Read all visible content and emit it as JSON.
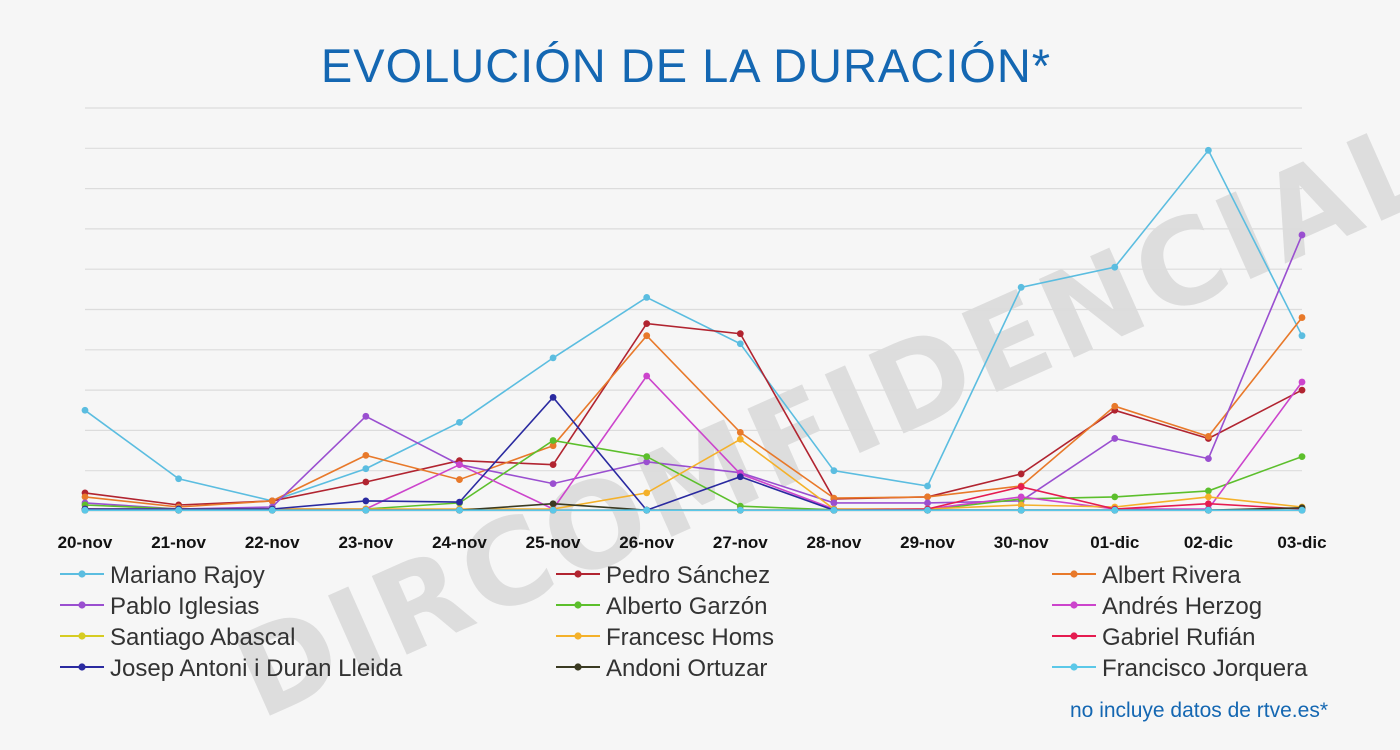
{
  "chart_data": {
    "type": "line",
    "title": "EVOLUCIÓN DE LA DURACIÓN*",
    "categories": [
      "20-nov",
      "21-nov",
      "22-nov",
      "23-nov",
      "24-nov",
      "25-nov",
      "26-nov",
      "27-nov",
      "28-nov",
      "29-nov",
      "30-nov",
      "01-dic",
      "02-dic",
      "03-dic"
    ],
    "ylim": [
      0,
      10
    ],
    "grid": true,
    "legend_position": "bottom",
    "series": [
      {
        "name": "Mariano Rajoy",
        "color": "#5bbde0",
        "values": [
          2.5,
          0.8,
          0.25,
          1.05,
          2.2,
          3.8,
          5.3,
          4.15,
          1.0,
          0.62,
          5.55,
          6.05,
          8.95,
          4.35
        ]
      },
      {
        "name": "Pedro Sánchez",
        "color": "#b12430",
        "values": [
          0.45,
          0.15,
          0.25,
          0.72,
          1.25,
          1.15,
          4.65,
          4.4,
          0.3,
          0.35,
          0.92,
          2.5,
          1.8,
          3.0
        ]
      },
      {
        "name": "Albert Rivera",
        "color": "#e8792a",
        "values": [
          0.35,
          0.1,
          0.25,
          1.38,
          0.78,
          1.62,
          4.35,
          1.95,
          0.32,
          0.35,
          0.62,
          2.6,
          1.85,
          4.8
        ]
      },
      {
        "name": "Pablo Iglesias",
        "color": "#9a4fd0",
        "values": [
          0.2,
          0.05,
          0.1,
          2.35,
          1.15,
          0.68,
          1.22,
          0.95,
          0.2,
          0.2,
          0.25,
          1.8,
          1.3,
          6.85
        ]
      },
      {
        "name": "Alberto Garzón",
        "color": "#5cbf2c",
        "values": [
          0.15,
          0.05,
          0.05,
          0.05,
          0.2,
          1.75,
          1.35,
          0.12,
          0.03,
          0.03,
          0.3,
          0.35,
          0.5,
          1.35
        ]
      },
      {
        "name": "Andrés Herzog",
        "color": "#cc44cc",
        "values": [
          0.05,
          0.05,
          0.05,
          0.05,
          1.15,
          0.05,
          3.35,
          0.92,
          0.05,
          0.05,
          0.35,
          0.05,
          0.05,
          3.2
        ]
      },
      {
        "name": "Santiago Abascal",
        "color": "#d6cc22",
        "values": [
          0.05,
          0.02,
          0.02,
          0.02,
          0.02,
          0.02,
          0.02,
          0.02,
          0.02,
          0.02,
          0.02,
          0.02,
          0.02,
          0.02
        ]
      },
      {
        "name": "Francesc Homs",
        "color": "#f4b12a",
        "values": [
          0.05,
          0.05,
          0.05,
          0.05,
          0.05,
          0.05,
          0.45,
          1.78,
          0.05,
          0.05,
          0.15,
          0.1,
          0.35,
          0.1
        ]
      },
      {
        "name": "Gabriel Rufián",
        "color": "#e51c50",
        "values": [
          0.05,
          0.02,
          0.02,
          0.02,
          0.02,
          0.02,
          0.02,
          0.02,
          0.02,
          0.05,
          0.6,
          0.05,
          0.18,
          0.05
        ]
      },
      {
        "name": "Josep Antoni i Duran Lleida",
        "color": "#2a2aa0",
        "values": [
          0.05,
          0.05,
          0.05,
          0.25,
          0.22,
          2.82,
          0.02,
          0.85,
          0.02,
          0.02,
          0.02,
          0.02,
          0.02,
          0.02
        ]
      },
      {
        "name": "Andoni Ortuzar",
        "color": "#3a3a22",
        "values": [
          0.02,
          0.02,
          0.02,
          0.02,
          0.02,
          0.18,
          0.02,
          0.02,
          0.02,
          0.02,
          0.02,
          0.02,
          0.02,
          0.08
        ]
      },
      {
        "name": "Francisco Jorquera",
        "color": "#5bc8e8",
        "values": [
          0.02,
          0.02,
          0.02,
          0.02,
          0.02,
          0.02,
          0.02,
          0.02,
          0.02,
          0.02,
          0.02,
          0.02,
          0.02,
          0.02
        ]
      }
    ]
  },
  "watermark": "DIRCOMFIDENCIAL",
  "footnote": "no incluye datos de rtve.es*"
}
